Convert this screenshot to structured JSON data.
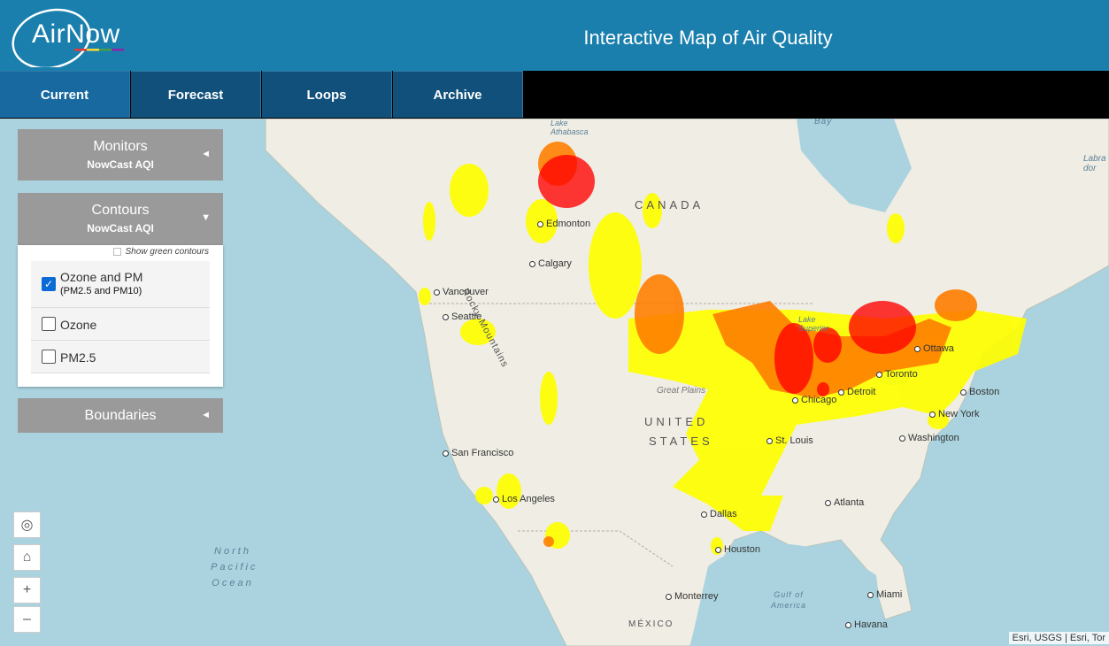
{
  "header": {
    "logo_text": "AirNow",
    "title": "Interactive Map of Air Quality"
  },
  "tabs": [
    {
      "label": "Current",
      "active": true
    },
    {
      "label": "Forecast",
      "active": false
    },
    {
      "label": "Loops",
      "active": false
    },
    {
      "label": "Archive",
      "active": false
    }
  ],
  "panels": {
    "monitors": {
      "title": "Monitors",
      "subtitle": "NowCast AQI",
      "arrow": "◄"
    },
    "contours": {
      "title": "Contours",
      "subtitle": "NowCast AQI",
      "arrow": "▼",
      "show_green_label": "Show green contours",
      "show_green_checked": false,
      "options": [
        {
          "label": "Ozone and PM",
          "sublabel": "(PM2.5 and PM10)",
          "checked": true
        },
        {
          "label": "Ozone",
          "sublabel": "",
          "checked": false
        },
        {
          "label": "PM2.5",
          "sublabel": "",
          "checked": false
        }
      ]
    },
    "boundaries": {
      "title": "Boundaries",
      "arrow": "◄"
    }
  },
  "map_controls": {
    "locate_icon": "◎",
    "home_icon": "⌂",
    "zoom_in": "+",
    "zoom_out": "–"
  },
  "map_labels": {
    "cities": [
      "Edmonton",
      "Calgary",
      "Vancouver",
      "Seattle",
      "San Francisco",
      "Los Angeles",
      "Dallas",
      "Houston",
      "Monterrey",
      "Chicago",
      "St. Louis",
      "Detroit",
      "Toronto",
      "Ottawa",
      "Boston",
      "New York",
      "Washington",
      "Atlanta",
      "Miami",
      "Havana"
    ],
    "countries": {
      "canada": "CANADA",
      "us_line1": "UNITED",
      "us_line2": "STATES",
      "mexico": "MÉXICO"
    },
    "regions": {
      "rocky": "Rocky Mountains",
      "great_plains": "Great Plains",
      "lake_athabasca": "Lake Athabasca",
      "lake_superior": "Lake Superior",
      "bay": "Bay",
      "labrador": "Labra dor",
      "north_pacific_1": "North",
      "north_pacific_2": "Pacific",
      "north_pacific_3": "Ocean",
      "gulf_1": "Gulf of",
      "gulf_2": "America"
    }
  },
  "aqi_colors": {
    "moderate": "#ffff00",
    "usg": "#ff7e00",
    "unhealthy": "#ff0000"
  },
  "attribution": "Esri, USGS | Esri, Tor"
}
